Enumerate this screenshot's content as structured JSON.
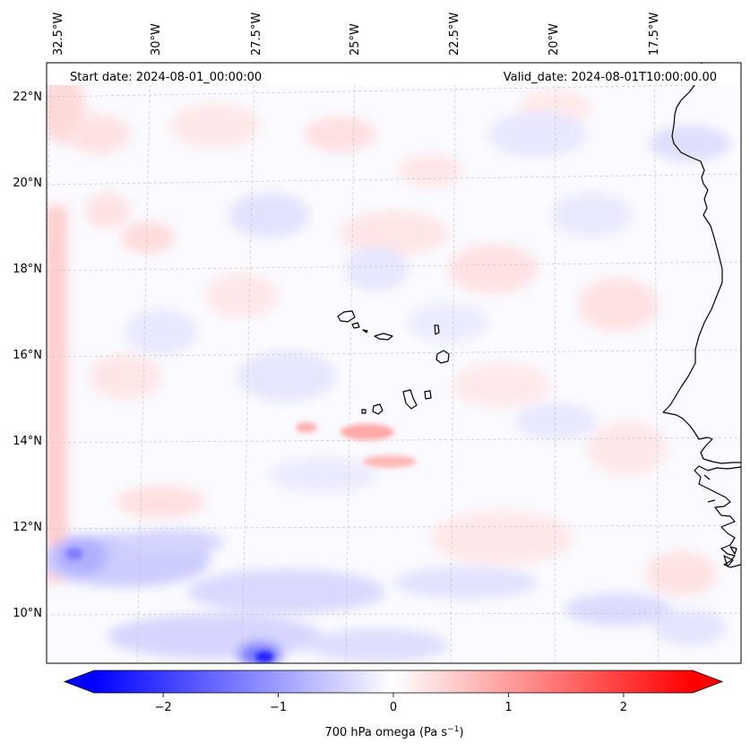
{
  "header": {
    "start_date": "Start date: 2024-08-01_00:00:00",
    "valid_date": "Valid_date: 2024-08-01T10:00:00.00"
  },
  "axes": {
    "lon_labels": [
      "32.5°W",
      "30°W",
      "27.5°W",
      "25°W",
      "22.5°W",
      "20°W",
      "17.5°W"
    ],
    "lon_values": [
      -32.5,
      -30,
      -27.5,
      -25,
      -22.5,
      -20,
      -17.5
    ],
    "lat_labels": [
      "22°N",
      "20°N",
      "18°N",
      "16°N",
      "14°N",
      "12°N",
      "10°N"
    ],
    "lat_values": [
      22,
      20,
      18,
      16,
      14,
      12,
      10
    ],
    "gridlines": true
  },
  "colorbar": {
    "tick_labels": [
      "−2",
      "−1",
      "0",
      "1",
      "2"
    ],
    "tick_values": [
      -2,
      -1,
      0,
      1,
      2
    ],
    "range": [
      -2.6,
      2.6
    ],
    "label": "700 hPa omega (Pa s",
    "label_sup": "−1",
    "label_close": ")",
    "cmap": "bwr",
    "extend": "both"
  },
  "colors": {
    "negative": "#0000ff",
    "zero": "#ffffff",
    "positive": "#ff0000",
    "coast": "#000000"
  }
}
